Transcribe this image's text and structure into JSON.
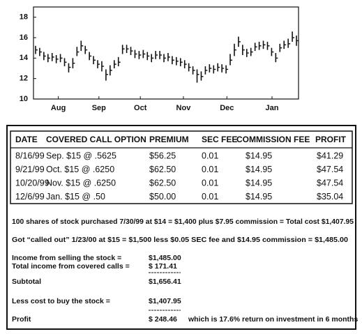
{
  "chart_data": {
    "type": "ohlc",
    "ylim": [
      10,
      19
    ],
    "yticks": [
      10,
      12,
      14,
      16,
      18
    ],
    "xlim": [
      0,
      64
    ],
    "xticks": [
      {
        "value": 6,
        "label": "Aug"
      },
      {
        "value": 15.8,
        "label": "Sep"
      },
      {
        "value": 25.8,
        "label": "Oct"
      },
      {
        "value": 36.2,
        "label": "Nov"
      },
      {
        "value": 46.7,
        "label": "Dec"
      },
      {
        "value": 57.6,
        "label": "Jan"
      }
    ],
    "color": "#111111",
    "high": [
      15.2,
      15.0,
      14.6,
      14.4,
      14.5,
      14.3,
      14.4,
      14.0,
      13.5,
      14.0,
      15.1,
      15.7,
      15.2,
      14.6,
      14.2,
      13.8,
      13.7,
      12.9,
      13.3,
      13.8,
      14.1,
      15.3,
      15.3,
      15.1,
      14.8,
      14.7,
      14.8,
      14.6,
      14.4,
      14.7,
      14.7,
      14.4,
      14.5,
      14.2,
      14.1,
      14.0,
      13.8,
      13.5,
      13.2,
      12.9,
      12.7,
      13.2,
      13.4,
      13.3,
      13.5,
      13.4,
      13.3,
      14.4,
      15.4,
      16.1,
      15.3,
      14.9,
      15.0,
      15.5,
      15.6,
      15.7,
      15.6,
      15.0,
      14.5,
      15.4,
      15.7,
      15.9,
      16.6,
      16.2
    ],
    "low": [
      14.4,
      14.2,
      13.8,
      13.6,
      13.7,
      13.5,
      13.6,
      13.2,
      12.6,
      13.0,
      14.2,
      14.7,
      14.4,
      13.8,
      13.4,
      13.0,
      12.7,
      11.8,
      12.3,
      13.0,
      13.2,
      14.4,
      14.5,
      14.3,
      14.0,
      13.9,
      14.0,
      13.8,
      13.6,
      13.9,
      13.9,
      13.6,
      13.7,
      13.4,
      13.3,
      13.2,
      13.0,
      12.7,
      12.4,
      11.6,
      11.8,
      12.4,
      12.6,
      12.5,
      12.7,
      12.6,
      12.5,
      13.3,
      14.2,
      15.1,
      14.3,
      14.1,
      14.2,
      14.7,
      14.8,
      14.9,
      14.8,
      14.2,
      13.6,
      14.6,
      14.9,
      15.0,
      15.6,
      15.2
    ],
    "close": [
      14.8,
      14.6,
      14.2,
      14.0,
      14.1,
      13.9,
      14.0,
      13.6,
      13.1,
      13.5,
      14.6,
      15.2,
      14.8,
      14.2,
      13.8,
      13.4,
      13.2,
      12.4,
      12.8,
      13.4,
      13.6,
      14.9,
      14.9,
      14.7,
      14.4,
      14.3,
      14.4,
      14.2,
      14.0,
      14.3,
      14.3,
      14.0,
      14.1,
      13.8,
      13.7,
      13.6,
      13.4,
      13.1,
      12.8,
      12.4,
      12.2,
      12.8,
      13.0,
      12.9,
      13.1,
      13.0,
      12.9,
      13.8,
      14.8,
      15.6,
      14.8,
      14.5,
      14.6,
      15.1,
      15.2,
      15.3,
      15.2,
      14.6,
      14.0,
      15.0,
      15.3,
      15.4,
      16.0,
      15.7
    ]
  },
  "table": {
    "columns": [
      "DATE",
      "COVERED CALL OPTION",
      "PREMIUM",
      "SEC FEE",
      "COMMISSION FEE",
      "PROFIT"
    ],
    "rows": [
      [
        "8/16/99",
        "Sep. $15 @ .5625",
        "$56.25",
        "0.01",
        "$14.95",
        "$41.29"
      ],
      [
        "9/21/99",
        "Oct. $15 @ .6250",
        "$62.50",
        "0.01",
        "$14.95",
        "$47.54"
      ],
      [
        "10/20/99",
        "Nov. $15 @ .6250",
        "$62.50",
        "0.01",
        "$14.95",
        "$47.54"
      ],
      [
        "12/6/99",
        "Jan. $15 @ .50",
        "$50.00",
        "0.01",
        "$14.95",
        "$35.04"
      ]
    ]
  },
  "notes": [
    "100 shares of stock purchased 7/30/99 at $14 = $1,400 plus $7.95 commission = Total cost $1,407.95",
    "Got “called out” 1/23/00 at $15 = $1,500 less $0.05 SEC fee and $14.95 commission = $1,485.00"
  ],
  "summary": [
    {
      "label": "Income from selling the stock =",
      "amount": "$1,485.00"
    },
    {
      "label": "Total income from covered calls =",
      "amount": "$  171.41"
    },
    {
      "label": "Subtotal",
      "amount": "$1,656.41"
    },
    {
      "label": "Less cost to buy the stock =",
      "amount": "$1,407.95"
    },
    {
      "label": "Profit",
      "amount": "$  248.46",
      "comment": "which is 17.6% return on investment in 6 months"
    }
  ]
}
